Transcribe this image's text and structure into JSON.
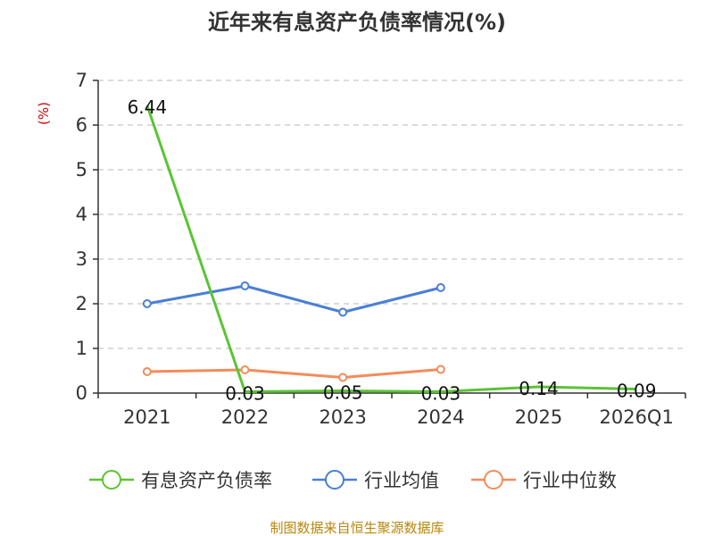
{
  "chart_data": {
    "type": "line",
    "title": "近年来有息资产负债率情况(%)",
    "ylabel": "(%)",
    "xlabel": "",
    "categories": [
      "2021",
      "2022",
      "2023",
      "2024",
      "2025",
      "2026Q1"
    ],
    "ylim": [
      0,
      7
    ],
    "yticks": [
      0,
      1,
      2,
      3,
      4,
      5,
      6,
      7
    ],
    "grid": true,
    "legend_position": "bottom",
    "series": [
      {
        "name": "有息资产负债率",
        "color": "#5bc434",
        "values": [
          6.44,
          0.03,
          0.05,
          0.03,
          0.14,
          0.09
        ],
        "labels": [
          "6.44",
          "0.03",
          "0.05",
          "0.03",
          "0.14",
          "0.09"
        ]
      },
      {
        "name": "行业均值",
        "color": "#4a7fd6",
        "values": [
          2.0,
          2.4,
          1.81,
          2.36,
          null,
          null
        ]
      },
      {
        "name": "行业中位数",
        "color": "#f28c5a",
        "values": [
          0.48,
          0.52,
          0.35,
          0.53,
          null,
          null
        ]
      }
    ],
    "source": "制图数据来自恒生聚源数据库"
  }
}
